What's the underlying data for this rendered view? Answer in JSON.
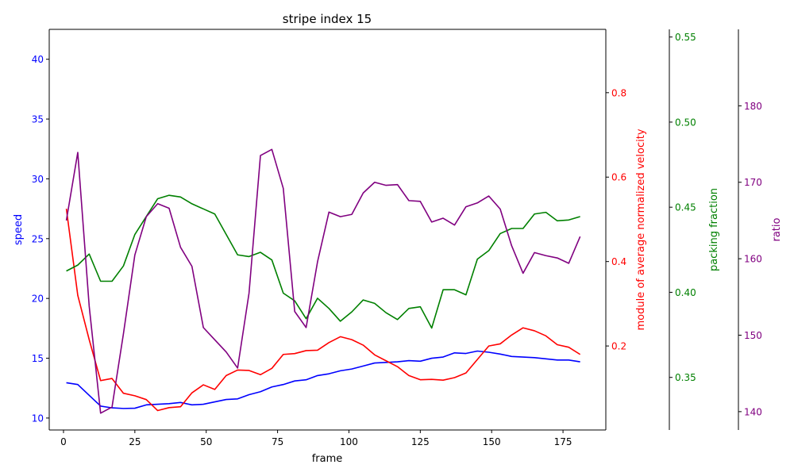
{
  "chart_data": {
    "type": "line",
    "title": "stripe index 15",
    "xlabel": "frame",
    "xlim": [
      -5,
      190
    ],
    "x_ticks": [
      0,
      25,
      50,
      75,
      100,
      125,
      150,
      175
    ],
    "x": [
      1,
      5,
      9,
      13,
      17,
      21,
      25,
      29,
      33,
      37,
      41,
      45,
      49,
      53,
      57,
      61,
      65,
      69,
      73,
      77,
      81,
      85,
      89,
      93,
      97,
      101,
      105,
      109,
      113,
      117,
      121,
      125,
      129,
      133,
      137,
      141,
      145,
      149,
      153,
      157,
      161,
      165,
      169,
      173,
      177,
      181
    ],
    "axes": [
      {
        "id": "speed",
        "label": "speed",
        "color": "#0000ff",
        "side": "left",
        "ylim": [
          9.0,
          42.5
        ],
        "ticks": [
          10,
          15,
          20,
          25,
          30,
          35,
          40
        ],
        "series": [
          {
            "values": [
              12.95,
              12.8,
              11.9,
              11.0,
              10.85,
              10.8,
              10.82,
              11.1,
              11.15,
              11.2,
              11.3,
              11.1,
              11.15,
              11.35,
              11.55,
              11.6,
              11.95,
              12.2,
              12.6,
              12.8,
              13.1,
              13.2,
              13.55,
              13.7,
              13.95,
              14.1,
              14.35,
              14.6,
              14.65,
              14.7,
              14.8,
              14.75,
              15.0,
              15.1,
              15.45,
              15.4,
              15.6,
              15.5,
              15.35,
              15.15,
              15.1,
              15.05,
              14.95,
              14.85,
              14.85,
              14.7
            ]
          }
        ]
      },
      {
        "id": "velocity",
        "label": "module of average normalized velocity",
        "color": "#ff0000",
        "side": "right",
        "ylim": [
          0.001,
          0.95
        ],
        "ticks": [
          0.2,
          0.4,
          0.6,
          0.8
        ],
        "tick_labels": [
          "0.2",
          "0.4",
          "0.6",
          "0.8"
        ],
        "series": [
          {
            "values": [
              0.525,
              0.32,
              0.215,
              0.118,
              0.123,
              0.088,
              0.082,
              0.073,
              0.047,
              0.054,
              0.056,
              0.089,
              0.108,
              0.097,
              0.13,
              0.143,
              0.142,
              0.132,
              0.147,
              0.18,
              0.182,
              0.189,
              0.19,
              0.208,
              0.222,
              0.215,
              0.202,
              0.179,
              0.165,
              0.151,
              0.13,
              0.12,
              0.121,
              0.119,
              0.125,
              0.136,
              0.168,
              0.2,
              0.205,
              0.226,
              0.243,
              0.236,
              0.224,
              0.203,
              0.197,
              0.18
            ]
          }
        ]
      },
      {
        "id": "packing",
        "label": "packing fraction",
        "color": "#008000",
        "side": "right",
        "ylim": [
          0.3191,
          0.5545
        ],
        "ticks": [
          0.35,
          0.4,
          0.45,
          0.5,
          0.55
        ],
        "tick_labels": [
          "0.35",
          "0.40",
          "0.45",
          "0.50",
          "0.55"
        ],
        "series": [
          {
            "values": [
              0.4125,
              0.416,
              0.4225,
              0.4065,
              0.4065,
              0.4155,
              0.434,
              0.4445,
              0.455,
              0.457,
              0.456,
              0.452,
              0.449,
              0.446,
              0.434,
              0.422,
              0.421,
              0.4235,
              0.419,
              0.3995,
              0.395,
              0.3845,
              0.3965,
              0.3905,
              0.383,
              0.3885,
              0.3955,
              0.3935,
              0.388,
              0.384,
              0.3905,
              0.3915,
              0.379,
              0.4015,
              0.4015,
              0.3985,
              0.4195,
              0.4245,
              0.4345,
              0.4375,
              0.4375,
              0.446,
              0.447,
              0.442,
              0.4425,
              0.4445
            ]
          }
        ]
      },
      {
        "id": "ratio",
        "label": "ratio",
        "color": "#800080",
        "side": "right",
        "ylim": [
          137.6,
          190.0
        ],
        "ticks": [
          140,
          150,
          160,
          170,
          180
        ],
        "series": [
          {
            "values": [
              165.0,
              173.9,
              153.8,
              139.8,
              140.6,
              150.2,
              160.5,
              165.5,
              167.2,
              166.6,
              161.5,
              159.0,
              151.0,
              149.4,
              147.8,
              145.7,
              155.5,
              173.5,
              174.3,
              169.2,
              153.1,
              151.0,
              159.6,
              166.1,
              165.5,
              165.8,
              168.6,
              170.0,
              169.6,
              169.7,
              167.6,
              167.5,
              164.8,
              165.3,
              164.4,
              166.8,
              167.3,
              168.2,
              166.5,
              161.7,
              158.1,
              160.8,
              160.4,
              160.1,
              159.4,
              162.9
            ]
          }
        ]
      }
    ]
  }
}
